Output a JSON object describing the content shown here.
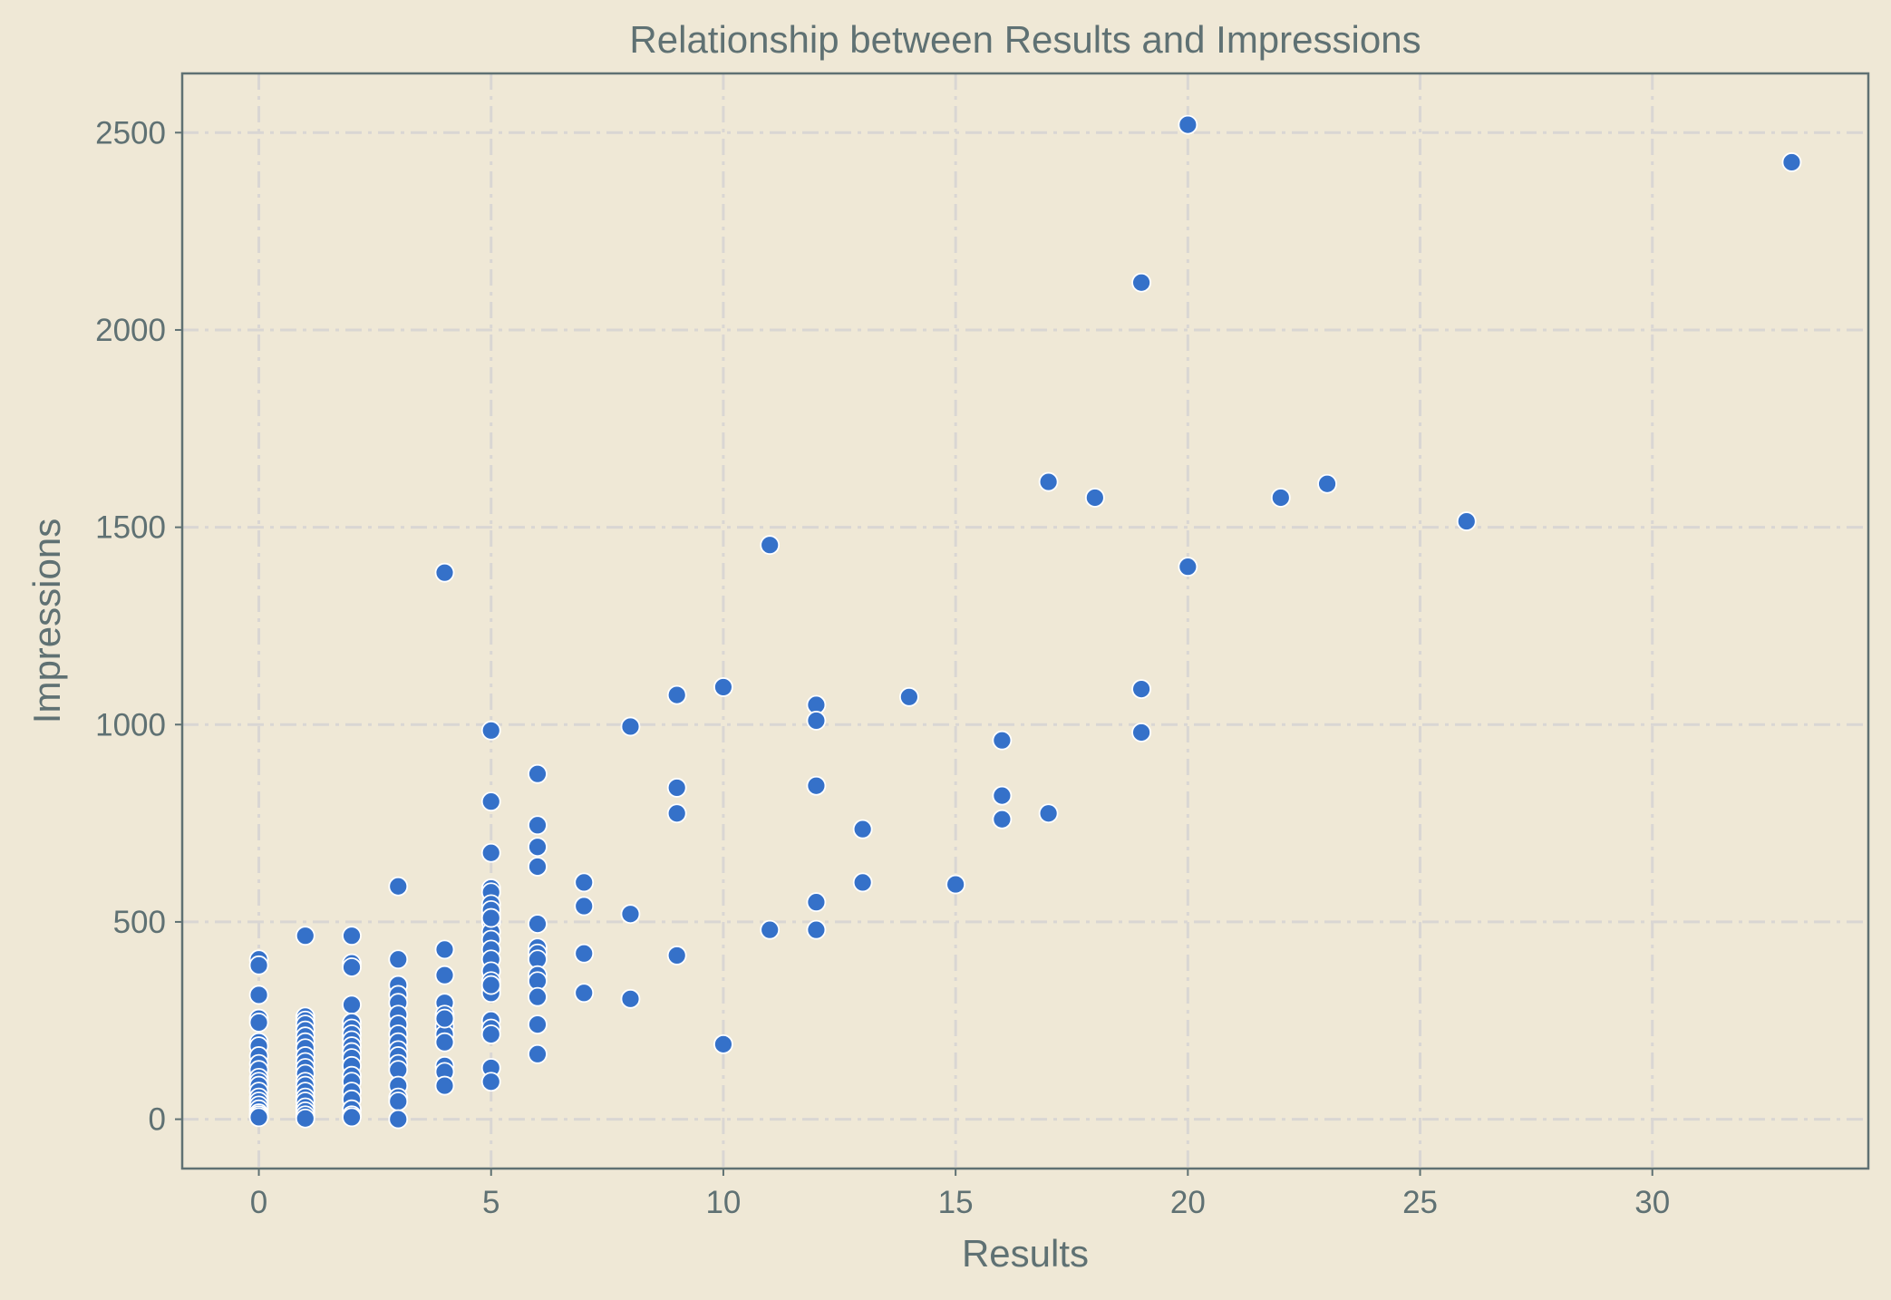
{
  "chart_data": {
    "type": "scatter",
    "title": "Relationship between Results and Impressions",
    "xlabel": "Results",
    "ylabel": "Impressions",
    "xlim": [
      -1.65,
      34.65
    ],
    "ylim": [
      -125,
      2650
    ],
    "xticks": [
      0,
      5,
      10,
      15,
      20,
      25,
      30
    ],
    "yticks": [
      0,
      500,
      1000,
      1500,
      2000,
      2500
    ],
    "grid": true,
    "legend": "none",
    "colors": {
      "background": "#efe8d6",
      "axes": "#5f7173",
      "text": "#5f7173",
      "grid": "#d9d6d3",
      "point": "#3571c9",
      "point_edge": "#ffffff"
    },
    "series": [
      {
        "x": [
          0,
          0,
          0,
          0,
          0,
          0,
          0,
          0,
          0,
          0,
          0,
          0,
          0,
          0,
          0,
          0,
          0,
          0,
          0,
          0,
          0,
          1,
          1,
          1,
          1,
          1,
          1,
          1,
          1,
          1,
          1,
          1,
          1,
          1,
          1,
          1,
          1,
          1,
          1,
          1,
          1,
          1,
          2,
          2,
          2,
          2,
          2,
          2,
          2,
          2,
          2,
          2,
          2,
          2,
          2,
          2,
          2,
          2,
          2,
          2,
          2,
          3,
          3,
          3,
          3,
          3,
          3,
          3,
          3,
          3,
          3,
          3,
          3,
          3,
          3,
          3,
          3,
          3,
          4,
          4,
          4,
          4,
          4,
          4,
          4,
          4,
          4,
          4,
          4,
          4,
          5,
          5,
          5,
          5,
          5,
          5,
          5,
          5,
          5,
          5,
          5,
          5,
          5,
          5,
          5,
          5,
          5,
          5,
          5,
          5,
          5,
          5,
          5,
          5,
          6,
          6,
          6,
          6,
          6,
          6,
          6,
          6,
          6,
          6,
          6,
          6,
          6,
          7,
          7,
          7,
          7,
          8,
          8,
          8,
          9,
          9,
          9,
          9,
          10,
          10,
          11,
          11,
          12,
          12,
          12,
          12,
          12,
          13,
          13,
          14,
          15,
          16,
          16,
          16,
          17,
          17,
          18,
          19,
          19,
          19,
          20,
          20,
          22,
          23,
          26,
          33
        ],
        "y": [
          405,
          390,
          315,
          255,
          245,
          195,
          185,
          160,
          140,
          125,
          105,
          95,
          85,
          70,
          55,
          45,
          35,
          25,
          15,
          10,
          5,
          465,
          260,
          250,
          240,
          225,
          210,
          195,
          180,
          160,
          145,
          130,
          115,
          95,
          85,
          70,
          55,
          45,
          30,
          20,
          10,
          2,
          465,
          395,
          385,
          290,
          245,
          230,
          215,
          200,
          185,
          170,
          155,
          135,
          110,
          95,
          70,
          50,
          25,
          10,
          5,
          405,
          340,
          315,
          295,
          265,
          240,
          215,
          195,
          175,
          160,
          140,
          125,
          85,
          55,
          45,
          590,
          0,
          1385,
          430,
          365,
          295,
          265,
          235,
          215,
          195,
          135,
          120,
          85,
          255,
          985,
          805,
          675,
          585,
          575,
          545,
          520,
          500,
          475,
          455,
          430,
          405,
          375,
          350,
          330,
          320,
          250,
          230,
          215,
          130,
          95,
          530,
          340,
          510,
          875,
          745,
          690,
          640,
          495,
          435,
          420,
          405,
          365,
          350,
          310,
          240,
          165,
          600,
          540,
          420,
          320,
          995,
          520,
          305,
          1075,
          840,
          775,
          415,
          1095,
          190,
          1455,
          480,
          1050,
          1010,
          845,
          550,
          480,
          735,
          600,
          1070,
          595,
          960,
          820,
          760,
          1615,
          775,
          1575,
          2120,
          1090,
          980,
          2520,
          1400,
          1575,
          1610,
          1515,
          2425
        ]
      }
    ]
  }
}
